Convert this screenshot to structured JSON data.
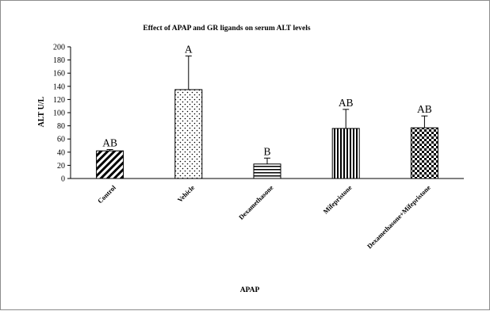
{
  "chart_data": {
    "type": "bar",
    "title": "Effect of APAP and GR ligands on serum ALT  levels",
    "xlabel": "APAP",
    "ylabel": "ALT U/L",
    "ylim": [
      0,
      200
    ],
    "yticks": [
      0,
      20,
      40,
      60,
      80,
      100,
      120,
      140,
      160,
      180,
      200
    ],
    "grid": false,
    "legend": "none",
    "categories": [
      "Control",
      "Vehicle",
      "Dexamethasone",
      "Mifepristone",
      "Dexamethasone+Mifepristone"
    ],
    "values": [
      42,
      135,
      22,
      76,
      77
    ],
    "errors": [
      2,
      51,
      9,
      29,
      18
    ],
    "annotations": [
      "AB",
      "A",
      "B",
      "AB",
      "AB"
    ],
    "patterns": [
      "diagonal-stripes",
      "dots",
      "horizontal-stripes",
      "vertical-stripes",
      "checkerboard"
    ]
  },
  "colors": {
    "bar_fill": "#000000",
    "bar_background": "#ffffff",
    "frame_border": "#8c8c8c"
  }
}
